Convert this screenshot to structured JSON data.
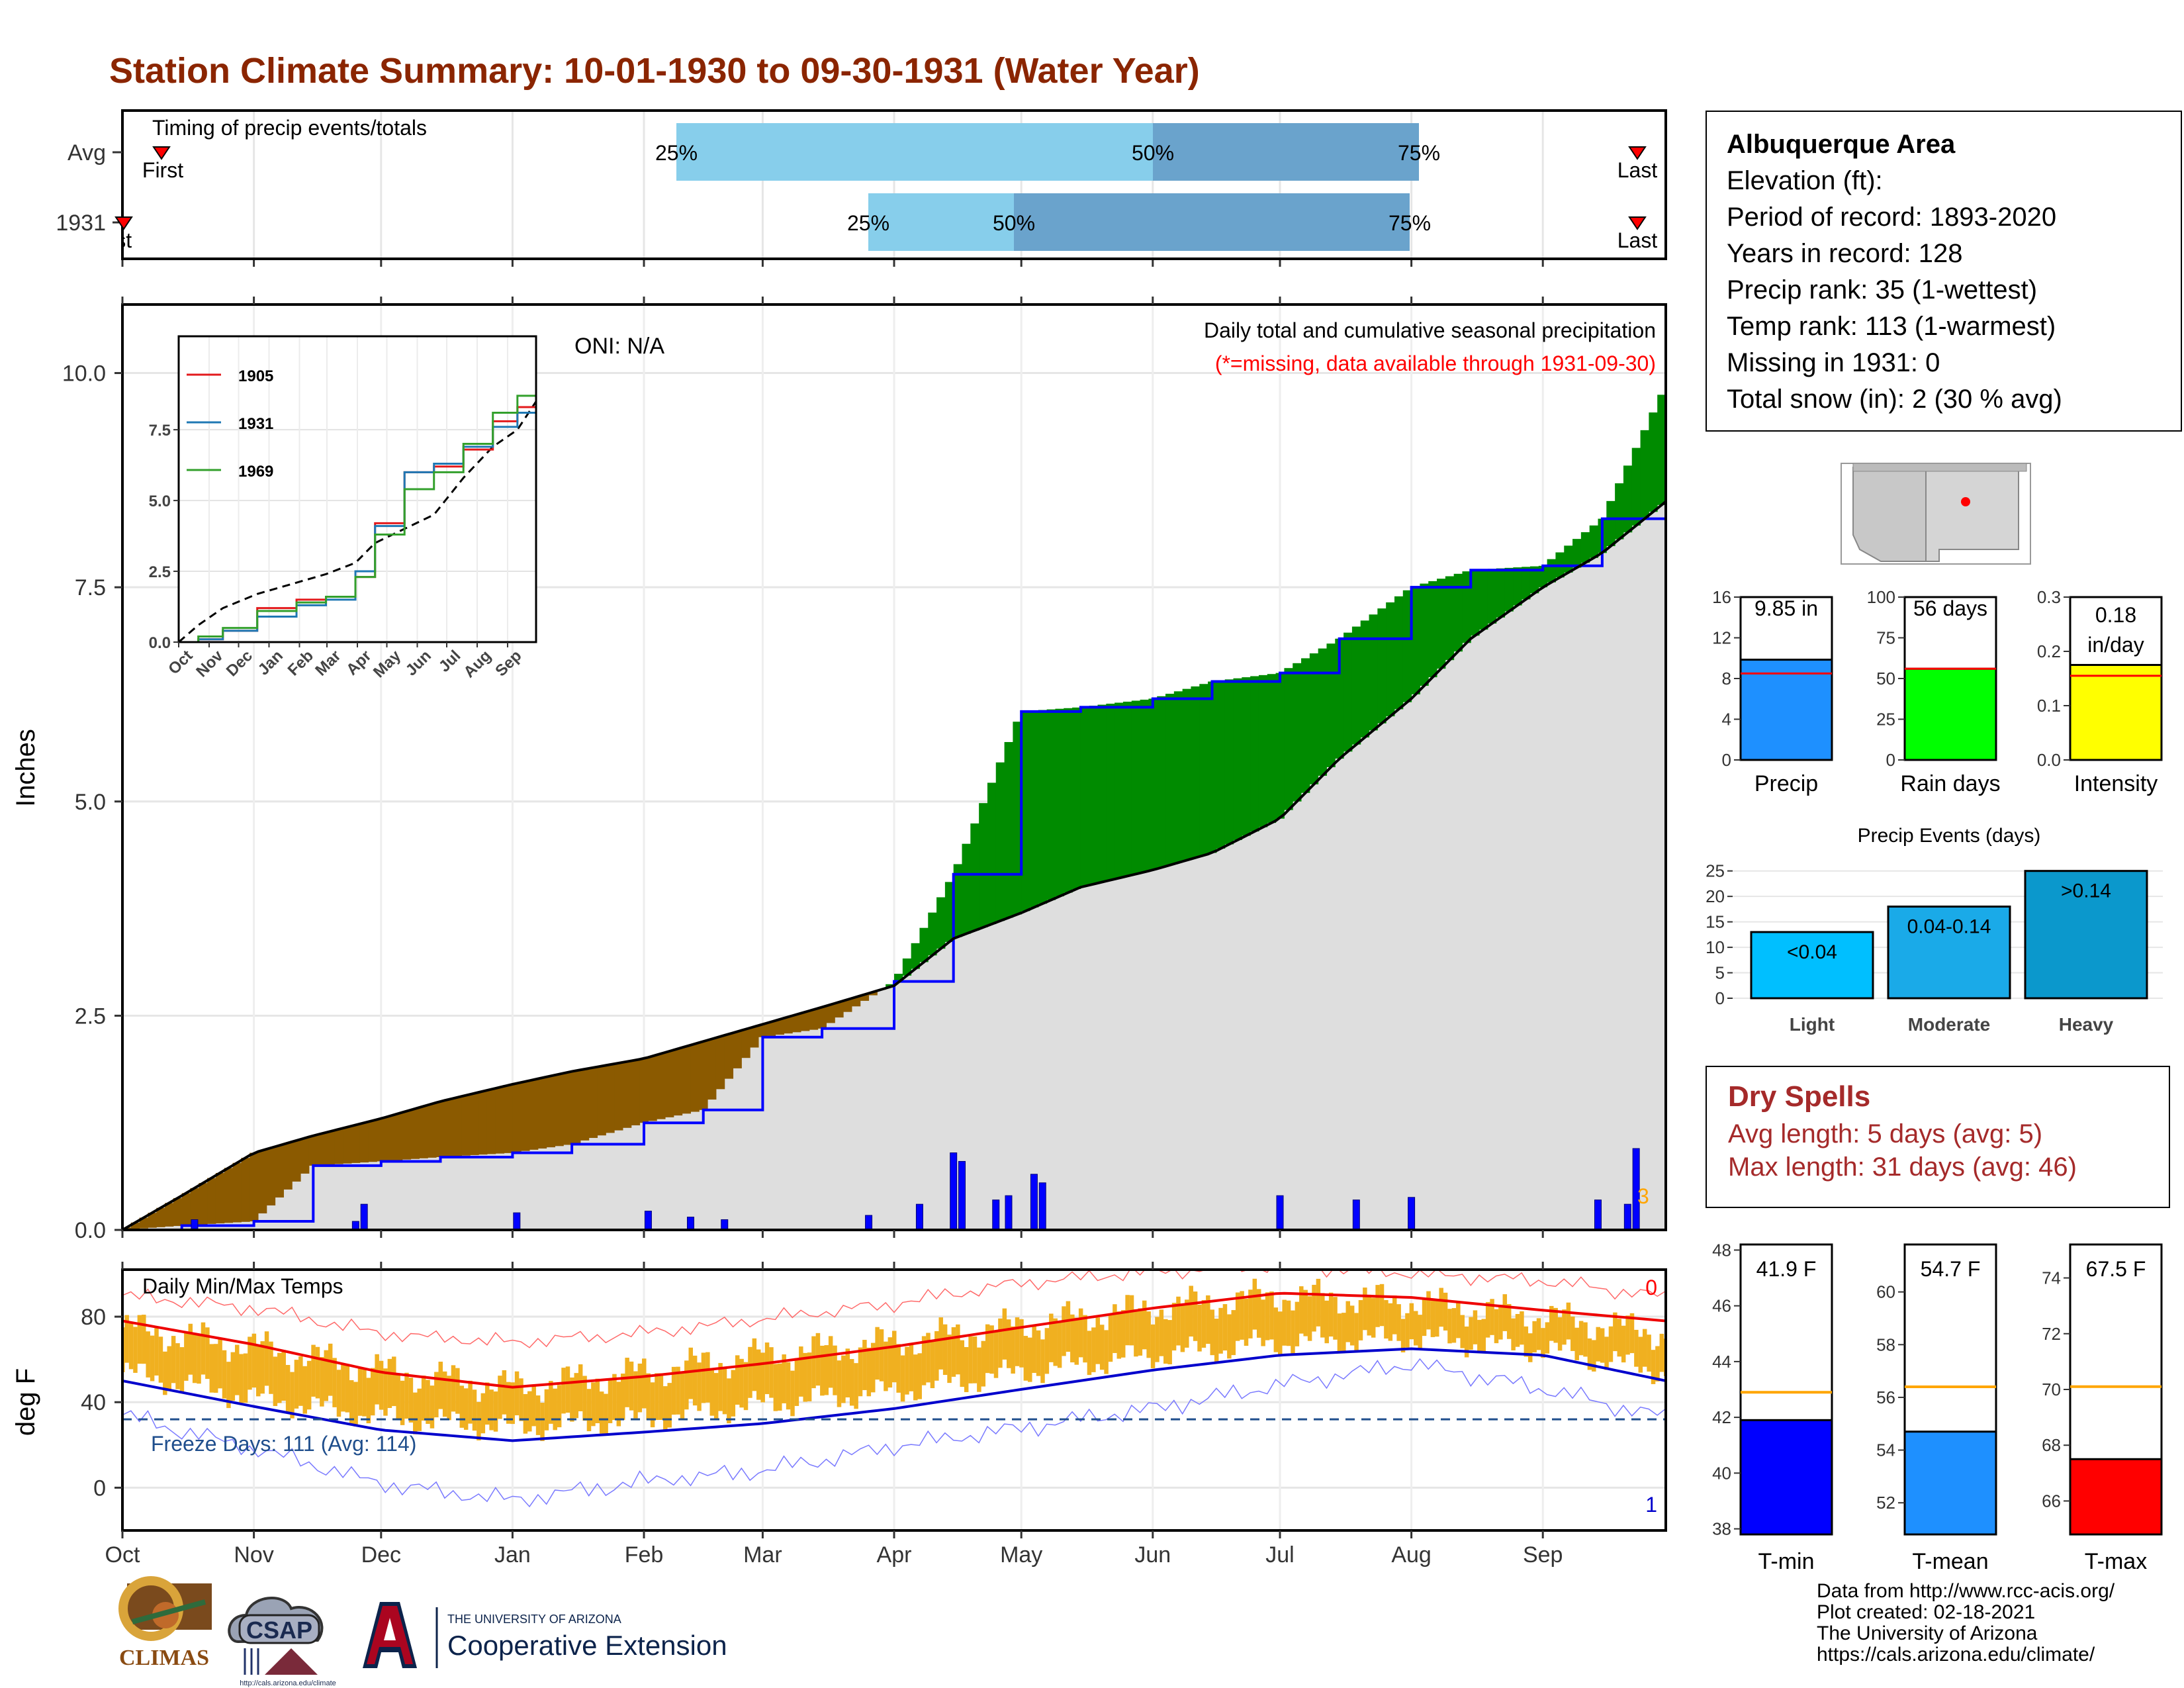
{
  "title": "Station Climate Summary: 10-01-1930 to 09-30-1931 (Water Year)",
  "timing": {
    "label": "Timing of precip events/totals",
    "rows": [
      {
        "name": "Avg",
        "first_label": "First",
        "last_label": "Last",
        "p25_label": "25%",
        "p50_label": "50%",
        "p75_label": "75%",
        "first": 10,
        "p25": 121,
        "p50": 243,
        "p75": 310,
        "last": 360
      },
      {
        "name": "1931",
        "first_label": "First",
        "last_label": "Last",
        "p25_label": "25%",
        "p50_label": "50%",
        "p75_label": "75%",
        "first": 0,
        "p25": 164,
        "p50": 197,
        "p75": 307,
        "last": 360
      }
    ]
  },
  "precip_panel": {
    "ylabel": "Inches",
    "header": "Daily total and cumulative seasonal precipitation",
    "missing_note": "(*=missing, data available through 1931-09-30)",
    "oni": "ONI: N/A",
    "corner_count": "3",
    "y_ticks": [
      "0.0",
      "2.5",
      "5.0",
      "7.5",
      "10.0"
    ]
  },
  "inset": {
    "y_ticks": [
      "0.0",
      "2.5",
      "5.0",
      "7.5"
    ],
    "months": [
      "Oct",
      "Nov",
      "Dec",
      "Jan",
      "Feb",
      "Mar",
      "Apr",
      "May",
      "Jun",
      "Jul",
      "Aug",
      "Sep"
    ],
    "legend": [
      {
        "name": "1905",
        "color": "#e31a1c"
      },
      {
        "name": "1931",
        "color": "#1f78b4"
      },
      {
        "name": "1969",
        "color": "#33a02c"
      }
    ]
  },
  "temp_panel": {
    "label": "Daily Min/Max Temps",
    "ylabel": "deg F",
    "freeze_label": "Freeze Days: 111 (Avg: 114)",
    "count_top": "0",
    "count_bottom": "1",
    "y_ticks": [
      "0",
      "40",
      "80"
    ]
  },
  "months": [
    "Oct",
    "Nov",
    "Dec",
    "Jan",
    "Feb",
    "Mar",
    "Apr",
    "May",
    "Jun",
    "Jul",
    "Aug",
    "Sep"
  ],
  "station": {
    "name": "Albuquerque Area",
    "lines": [
      "Elevation (ft):",
      "Period of record: 1893-2020",
      "Years in record: 128",
      "Precip rank: 35 (1-wettest)",
      "Temp rank: 113 (1-warmest)",
      "Missing in 1931: 0",
      "Total snow (in): 2 (30 % avg)"
    ]
  },
  "mini_bars": [
    {
      "label": "Precip",
      "value_label": "9.85 in",
      "value": 9.85,
      "avg": 8.5,
      "ymax": 16,
      "ticks": [
        "0",
        "4",
        "8",
        "12",
        "16"
      ],
      "tickvals": [
        0,
        4,
        8,
        12,
        16
      ],
      "color": "#1e90ff"
    },
    {
      "label": "Rain days",
      "value_label": "56 days",
      "value": 56,
      "avg": 56,
      "ymax": 100,
      "ticks": [
        "0",
        "25",
        "50",
        "75",
        "100"
      ],
      "tickvals": [
        0,
        25,
        50,
        75,
        100
      ],
      "color": "#00ff00"
    },
    {
      "label": "Intensity",
      "value_label": "0.18 in/day",
      "value": 0.175,
      "avg": 0.155,
      "ymax": 0.3,
      "ticks": [
        "0.0",
        "0.1",
        "0.2",
        "0.3"
      ],
      "tickvals": [
        0,
        0.1,
        0.2,
        0.3
      ],
      "color": "#ffff00"
    }
  ],
  "events": {
    "title": "Precip Events (days)",
    "categories": [
      "Light",
      "Moderate",
      "Heavy"
    ],
    "labels": [
      "<0.04",
      "0.04-0.14",
      ">0.14"
    ],
    "values": [
      13,
      18,
      25
    ],
    "ticks": [
      "0",
      "5",
      "10",
      "15",
      "20",
      "25"
    ]
  },
  "dry_spells": {
    "title": "Dry Spells",
    "avg_line": "Avg length: 5 days (avg: 5)",
    "max_line": "Max length: 31 days (avg: 46)"
  },
  "temp_bars": [
    {
      "label": "T-min",
      "value_label": "41.9 F",
      "value": 41.9,
      "avg": 42.9,
      "ymin": 37.8,
      "ymax": 48.2,
      "ticks": [
        "38",
        "40",
        "42",
        "44",
        "46",
        "48"
      ],
      "tickvals": [
        38,
        40,
        42,
        44,
        46,
        48
      ],
      "color": "#0000ff"
    },
    {
      "label": "T-mean",
      "value_label": "54.7 F",
      "value": 54.7,
      "avg": 56.4,
      "ymin": 50.8,
      "ymax": 61.8,
      "ticks": [
        "52",
        "54",
        "56",
        "58",
        "60"
      ],
      "tickvals": [
        52,
        54,
        56,
        58,
        60
      ],
      "color": "#1e90ff"
    },
    {
      "label": "T-max",
      "value_label": "67.5 F",
      "value": 67.5,
      "avg": 70.1,
      "ymin": 64.8,
      "ymax": 75.2,
      "ticks": [
        "66",
        "68",
        "70",
        "72",
        "74"
      ],
      "tickvals": [
        66,
        68,
        70,
        72,
        74
      ],
      "color": "#ff0000"
    }
  ],
  "footer": {
    "lines": [
      "Data from http://www.rcc-acis.org/",
      "Plot created: 02-18-2021",
      "The University of Arizona",
      "https://cals.arizona.edu/climate/"
    ]
  },
  "logos": {
    "climas": "CLIMAS",
    "csap": "CSAP",
    "csap_url": "http://cals.arizona.edu/climate",
    "ua_small": "THE UNIVERSITY OF ARIZONA",
    "ua_big": "Cooperative Extension"
  },
  "chart_data": [
    {
      "type": "area",
      "title": "Daily total and cumulative seasonal precipitation",
      "ylabel": "Inches",
      "ylim": [
        0,
        10.8
      ],
      "x": [
        "10-01",
        "10-15",
        "11-01",
        "11-15",
        "12-01",
        "12-15",
        "01-01",
        "01-15",
        "02-01",
        "02-15",
        "03-01",
        "03-15",
        "04-01",
        "04-15",
        "05-01",
        "05-15",
        "06-01",
        "06-15",
        "07-01",
        "07-15",
        "08-01",
        "08-15",
        "09-01",
        "09-15",
        "09-30"
      ],
      "series": [
        {
          "name": "1931",
          "values": [
            0.0,
            0.05,
            0.1,
            0.75,
            0.8,
            0.85,
            0.9,
            1.0,
            1.25,
            1.4,
            2.25,
            2.35,
            2.9,
            4.15,
            6.05,
            6.1,
            6.2,
            6.4,
            6.5,
            6.9,
            7.5,
            7.7,
            7.75,
            8.3,
            9.85
          ]
        },
        {
          "values": [
            0.0,
            0.4,
            0.9,
            1.1,
            1.3,
            1.5,
            1.7,
            1.85,
            2.0,
            2.2,
            2.4,
            2.6,
            2.85,
            3.4,
            3.7,
            4.0,
            4.2,
            4.4,
            4.8,
            5.5,
            6.2,
            6.9,
            7.5,
            7.9,
            8.5
          ]
        }
      ],
      "daily_bars": [
        {
          "x": "10-18",
          "y": 0.12
        },
        {
          "x": "11-25",
          "y": 0.1
        },
        {
          "x": "11-27",
          "y": 0.3
        },
        {
          "x": "01-02",
          "y": 0.2
        },
        {
          "x": "02-02",
          "y": 0.22
        },
        {
          "x": "02-12",
          "y": 0.15
        },
        {
          "x": "02-20",
          "y": 0.12
        },
        {
          "x": "03-26",
          "y": 0.17
        },
        {
          "x": "04-07",
          "y": 0.3
        },
        {
          "x": "04-15",
          "y": 0.9
        },
        {
          "x": "04-17",
          "y": 0.8
        },
        {
          "x": "04-25",
          "y": 0.35
        },
        {
          "x": "04-28",
          "y": 0.4
        },
        {
          "x": "05-04",
          "y": 0.65
        },
        {
          "x": "05-06",
          "y": 0.55
        },
        {
          "x": "07-01",
          "y": 0.4
        },
        {
          "x": "07-19",
          "y": 0.35
        },
        {
          "x": "08-01",
          "y": 0.38
        },
        {
          "x": "09-14",
          "y": 0.35
        },
        {
          "x": "09-21",
          "y": 0.3
        },
        {
          "x": "09-23",
          "y": 0.95
        }
      ]
    },
    {
      "type": "line",
      "title": "Daily Min/Max Temps",
      "ylabel": "deg F",
      "ylim": [
        -20,
        102
      ],
      "x": [
        "10-01",
        "11-01",
        "12-01",
        "01-01",
        "02-01",
        "03-01",
        "04-01",
        "05-01",
        "06-01",
        "07-01",
        "08-01",
        "09-01",
        "09-30"
      ],
      "series": [
        {
          "name": "avg max",
          "values": [
            78,
            67,
            54,
            47,
            52,
            58,
            66,
            75,
            84,
            91,
            89,
            83,
            78
          ]
        },
        {
          "name": "avg min",
          "values": [
            50,
            38,
            27,
            22,
            26,
            30,
            37,
            46,
            55,
            62,
            65,
            62,
            50
          ]
        },
        {
          "name": "record max",
          "values": [
            90,
            84,
            72,
            68,
            72,
            79,
            86,
            96,
            101,
            104,
            100,
            97,
            89
          ]
        },
        {
          "name": "record min",
          "values": [
            34,
            18,
            2,
            -6,
            3,
            8,
            19,
            28,
            37,
            48,
            58,
            46,
            33
          ]
        },
        {
          "name": "daily max",
          "values": [
            75,
            66,
            55,
            47,
            54,
            62,
            68,
            76,
            84,
            90,
            87,
            80,
            72
          ]
        },
        {
          "name": "daily min",
          "values": [
            48,
            36,
            27,
            22,
            26,
            33,
            39,
            48,
            56,
            62,
            64,
            59,
            48
          ]
        }
      ],
      "freeze_line": 32
    }
  ]
}
